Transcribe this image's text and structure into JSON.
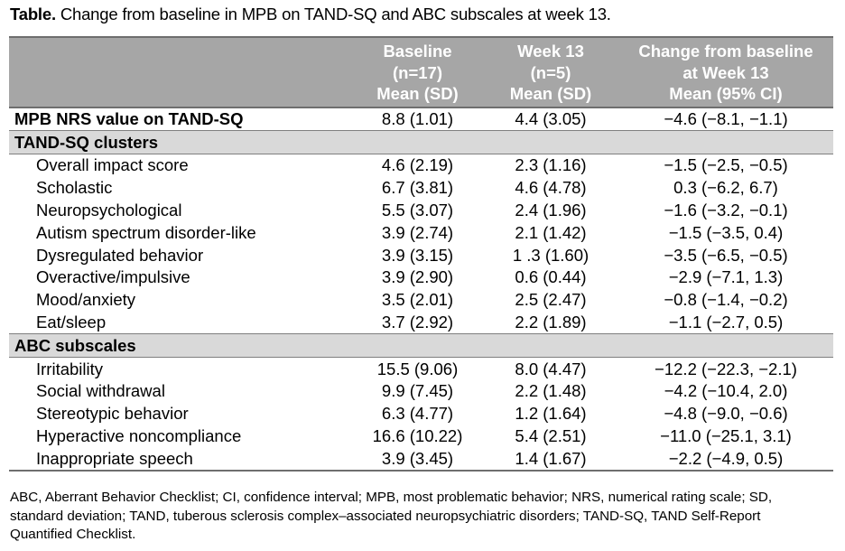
{
  "title": {
    "prefix": "Table.",
    "text": " Change from baseline in MPB on TAND-SQ and ABC subscales at week 13."
  },
  "header": {
    "baseline": [
      "Baseline",
      "(n=17)",
      "Mean (SD)"
    ],
    "week13": [
      "Week 13",
      "(n=5)",
      "Mean (SD)"
    ],
    "change": [
      "Change from baseline",
      "at Week 13",
      "Mean (95% CI)"
    ]
  },
  "mpb_row": {
    "label": "MPB NRS value on TAND-SQ",
    "baseline": "8.8 (1.01)",
    "week13": "4.4 (3.05)",
    "change": "−4.6 (−8.1, −1.1)"
  },
  "sections": [
    {
      "title": "TAND-SQ clusters",
      "rows": [
        {
          "label": "Overall impact score",
          "baseline": "4.6 (2.19)",
          "week13": "2.3 (1.16)",
          "change": "−1.5 (−2.5, −0.5)"
        },
        {
          "label": "Scholastic",
          "baseline": "6.7 (3.81)",
          "week13": "4.6 (4.78)",
          "change": "0.3 (−6.2, 6.7)"
        },
        {
          "label": "Neuropsychological",
          "baseline": "5.5 (3.07)",
          "week13": "2.4 (1.96)",
          "change": "−1.6 (−3.2, −0.1)"
        },
        {
          "label": "Autism spectrum disorder-like",
          "baseline": "3.9 (2.74)",
          "week13": "2.1 (1.42)",
          "change": "−1.5 (−3.5, 0.4)"
        },
        {
          "label": "Dysregulated behavior",
          "baseline": "3.9 (3.15)",
          "week13": "1 .3 (1.60)",
          "change": "−3.5 (−6.5, −0.5)"
        },
        {
          "label": "Overactive/impulsive",
          "baseline": "3.9 (2.90)",
          "week13": "0.6 (0.44)",
          "change": "−2.9 (−7.1, 1.3)"
        },
        {
          "label": "Mood/anxiety",
          "baseline": "3.5 (2.01)",
          "week13": "2.5 (2.47)",
          "change": "−0.8 (−1.4, −0.2)"
        },
        {
          "label": "Eat/sleep",
          "baseline": "3.7 (2.92)",
          "week13": "2.2 (1.89)",
          "change": "−1.1 (−2.7, 0.5)"
        }
      ]
    },
    {
      "title": "ABC subscales",
      "rows": [
        {
          "label": "Irritability",
          "baseline": "15.5 (9.06)",
          "week13": "8.0 (4.47)",
          "change": "−12.2 (−22.3, −2.1)"
        },
        {
          "label": "Social withdrawal",
          "baseline": "9.9 (7.45)",
          "week13": "2.2 (1.48)",
          "change": "−4.2 (−10.4, 2.0)"
        },
        {
          "label": "Stereotypic behavior",
          "baseline": "6.3 (4.77)",
          "week13": "1.2 (1.64)",
          "change": "−4.8 (−9.0, −0.6)"
        },
        {
          "label": "Hyperactive noncompliance",
          "baseline": "16.6 (10.22)",
          "week13": "5.4 (2.51)",
          "change": "−11.0 (−25.1, 3.1)"
        },
        {
          "label": "Inappropriate speech",
          "baseline": "3.9 (3.45)",
          "week13": "1.4 (1.67)",
          "change": "−2.2 (−4.9, 0.5)"
        }
      ]
    }
  ],
  "footnote": "ABC, Aberrant Behavior Checklist; CI, confidence interval; MPB, most problematic behavior; NRS, numerical rating scale; SD, standard deviation; TAND, tuberous sclerosis complex–associated neuropsychiatric disorders; TAND-SQ, TAND Self-Report Quantified Checklist."
}
